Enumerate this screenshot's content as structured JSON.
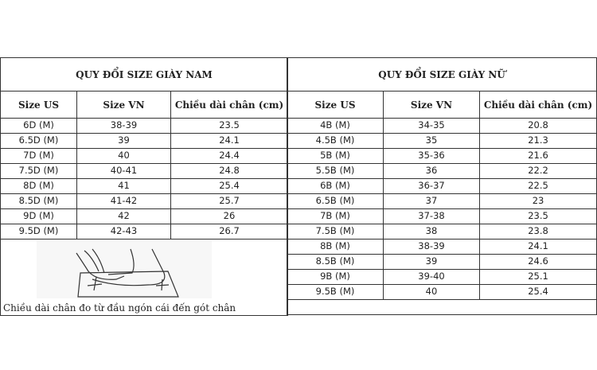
{
  "men": {
    "title": "QUY ĐỔI SIZE GIÀY NAM",
    "headers": [
      "Size US",
      "Size VN",
      "Chiều dài chân (cm)"
    ],
    "rows": [
      [
        "6D (M)",
        "38-39",
        "23.5"
      ],
      [
        "6.5D (M)",
        "39",
        "24.1"
      ],
      [
        "7D (M)",
        "40",
        "24.4"
      ],
      [
        "7.5D (M)",
        "40-41",
        "24.8"
      ],
      [
        "8D (M)",
        "41",
        "25.4"
      ],
      [
        "8.5D (M)",
        "41-42",
        "25.7"
      ],
      [
        "9D (M)",
        "42",
        "26"
      ],
      [
        "9.5D (M)",
        "42-43",
        "26.7"
      ]
    ],
    "caption": "Chiều dài chân đo từ đầu ngón cái đến gót chân"
  },
  "women": {
    "title": "QUY ĐỔI SIZE GIÀY NỮ",
    "headers": [
      "Size US",
      "Size VN",
      "Chiều dài chân (cm)"
    ],
    "rows": [
      [
        "4B (M)",
        "34-35",
        "20.8"
      ],
      [
        "4.5B (M)",
        "35",
        "21.3"
      ],
      [
        "5B (M)",
        "35-36",
        "21.6"
      ],
      [
        "5.5B (M)",
        "36",
        "22.2"
      ],
      [
        "6B (M)",
        "36-37",
        "22.5"
      ],
      [
        "6.5B (M)",
        "37",
        "23"
      ],
      [
        "7B (M)",
        "37-38",
        "23.5"
      ],
      [
        "7.5B (M)",
        "38",
        "23.8"
      ],
      [
        "8B (M)",
        "38-39",
        "24.1"
      ],
      [
        "8.5B (M)",
        "39",
        "24.6"
      ],
      [
        "9B (M)",
        "39-40",
        "25.1"
      ],
      [
        "9.5B (M)",
        "40",
        "25.4"
      ]
    ]
  }
}
